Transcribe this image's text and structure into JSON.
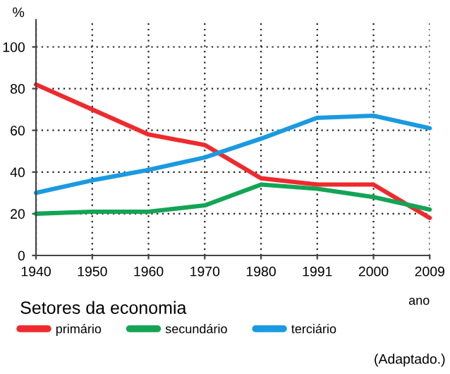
{
  "chart_data": {
    "type": "line",
    "categories": [
      "1940",
      "1950",
      "1960",
      "1970",
      "1980",
      "1991",
      "2000",
      "2009"
    ],
    "ylabel": "%",
    "xlabel": "ano",
    "legend_title": "Setores da economia",
    "series": [
      {
        "name": "primário",
        "color": "#ee2a2e",
        "values": [
          82,
          70,
          58,
          53,
          37,
          34,
          34,
          18
        ]
      },
      {
        "name": "secundário",
        "color": "#13a455",
        "values": [
          20,
          21,
          21,
          24,
          34,
          32,
          28,
          22
        ]
      },
      {
        "name": "terciário",
        "color": "#1a9ae0",
        "values": [
          30,
          36,
          41,
          47,
          56,
          66,
          67,
          61
        ]
      }
    ],
    "ylim": [
      0,
      113
    ],
    "yticks": [
      0,
      20,
      40,
      60,
      80,
      100
    ],
    "grid": true,
    "legend": "bottom",
    "marker": "none",
    "line_style": "solid",
    "annotations": [
      "(Adaptado.)"
    ]
  }
}
